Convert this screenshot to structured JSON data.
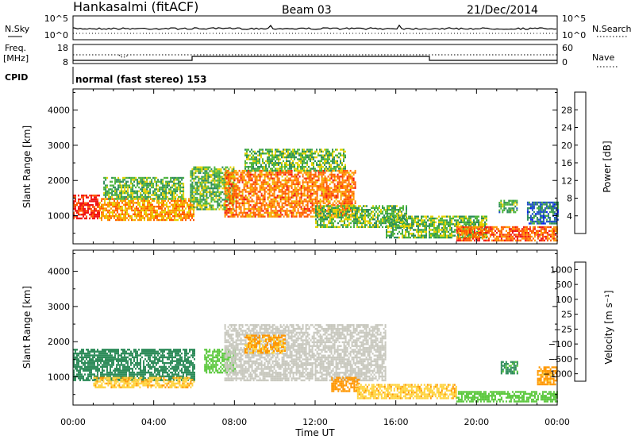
{
  "header": {
    "station": "Hankasalmi (fitACF)",
    "beam": "Beam 03",
    "date": "21/Dec/2014"
  },
  "noise_panel": {
    "left_label": "N.Sky",
    "right_label": "N.Search",
    "left_ticks": [
      "10^5",
      "10^0"
    ],
    "right_ticks": [
      "10^5",
      "10^0"
    ]
  },
  "freq_panel": {
    "left_label_top": "Freq.",
    "left_label_bottom": "[MHz]",
    "right_label": "Nave",
    "left_ticks": [
      "18",
      "8"
    ],
    "right_ticks": [
      "60",
      "0"
    ]
  },
  "cpid_panel": {
    "label": "CPID",
    "mode": "normal (fast stereo) 153"
  },
  "colors": {
    "power": [
      "#0a1ef0",
      "#1e50c8",
      "#2e8c5a",
      "#4cb43c",
      "#e6d200",
      "#ff9600",
      "#ff5a00",
      "#f01414"
    ],
    "velocity": [
      "#f01414",
      "#ff5a00",
      "#ff9600",
      "#ffd23c",
      "#c8c8be",
      "#5ac83c",
      "#2e8c5a",
      "#1e50c8"
    ],
    "ground": "#bebebe"
  },
  "chart_data": [
    {
      "type": "heatmap",
      "panel": "power",
      "ylabel": "Slant Range [km]",
      "y_ticks": [
        "1000",
        "2000",
        "3000",
        "4000"
      ],
      "y_tick_values": [
        1000,
        2000,
        3000,
        4000
      ],
      "ylim": [
        200,
        4600
      ],
      "xlim_hours": [
        0,
        24
      ],
      "colorbar_label": "Power [dB]",
      "colorbar_ticks": [
        "4",
        "8",
        "12",
        "16",
        "20",
        "24",
        "28"
      ],
      "colorbar_range": [
        0,
        32
      ],
      "regions": [
        {
          "t": [
            0.0,
            1.3
          ],
          "r": [
            900,
            1600
          ],
          "v": 30
        },
        {
          "t": [
            1.3,
            6.0
          ],
          "r": [
            900,
            1500
          ],
          "v": 22
        },
        {
          "t": [
            1.5,
            5.5
          ],
          "r": [
            1500,
            2100
          ],
          "v": 14
        },
        {
          "t": [
            5.8,
            8.0
          ],
          "r": [
            1200,
            2400
          ],
          "v": 14
        },
        {
          "t": [
            7.5,
            14.0
          ],
          "r": [
            1000,
            2300
          ],
          "v": 24
        },
        {
          "t": [
            8.5,
            13.5
          ],
          "r": [
            2300,
            2900
          ],
          "v": 14
        },
        {
          "t": [
            12.0,
            16.5
          ],
          "r": [
            700,
            1300
          ],
          "v": 14
        },
        {
          "t": [
            15.5,
            20.5
          ],
          "r": [
            400,
            1000
          ],
          "v": 14
        },
        {
          "t": [
            19.0,
            24.0
          ],
          "r": [
            300,
            700
          ],
          "v": 26
        },
        {
          "t": [
            21.1,
            22.0
          ],
          "r": [
            1100,
            1450
          ],
          "v": 12
        },
        {
          "t": [
            22.5,
            24.0
          ],
          "r": [
            800,
            1400
          ],
          "v": 8
        }
      ]
    },
    {
      "type": "heatmap",
      "panel": "velocity",
      "ylabel": "Slant Range [km]",
      "y_ticks": [
        "1000",
        "2000",
        "3000",
        "4000"
      ],
      "y_tick_values": [
        1000,
        2000,
        3000,
        4000
      ],
      "ylim": [
        200,
        4600
      ],
      "xlim_hours": [
        0,
        24
      ],
      "xlabel": "Time UT",
      "x_ticks": [
        "00:00",
        "04:00",
        "08:00",
        "12:00",
        "16:00",
        "20:00",
        "00:00"
      ],
      "colorbar_label": "Velocity [m s⁻¹]",
      "colorbar_ticks": [
        "1000",
        "500",
        "100",
        "25",
        "−25",
        "−100",
        "−500",
        "−1000"
      ],
      "regions": [
        {
          "t": [
            0.0,
            6.0
          ],
          "r": [
            900,
            1800
          ],
          "v": 250
        },
        {
          "t": [
            1.0,
            6.0
          ],
          "r": [
            700,
            1000
          ],
          "v": -80
        },
        {
          "t": [
            6.5,
            8.0
          ],
          "r": [
            1100,
            1800
          ],
          "v": 60
        },
        {
          "t": [
            7.5,
            15.5
          ],
          "r": [
            900,
            2500
          ],
          "v": 0
        },
        {
          "t": [
            8.5,
            10.5
          ],
          "r": [
            1700,
            2200
          ],
          "v": -120
        },
        {
          "t": [
            12.8,
            14.2
          ],
          "r": [
            600,
            1000
          ],
          "v": -300
        },
        {
          "t": [
            14.0,
            19.0
          ],
          "r": [
            400,
            800
          ],
          "v": -80
        },
        {
          "t": [
            19.0,
            24.0
          ],
          "r": [
            300,
            600
          ],
          "v": 60
        },
        {
          "t": [
            21.2,
            22.0
          ],
          "r": [
            1100,
            1450
          ],
          "v": 120
        },
        {
          "t": [
            23.0,
            24.0
          ],
          "r": [
            800,
            1300
          ],
          "v": -150
        }
      ]
    }
  ]
}
